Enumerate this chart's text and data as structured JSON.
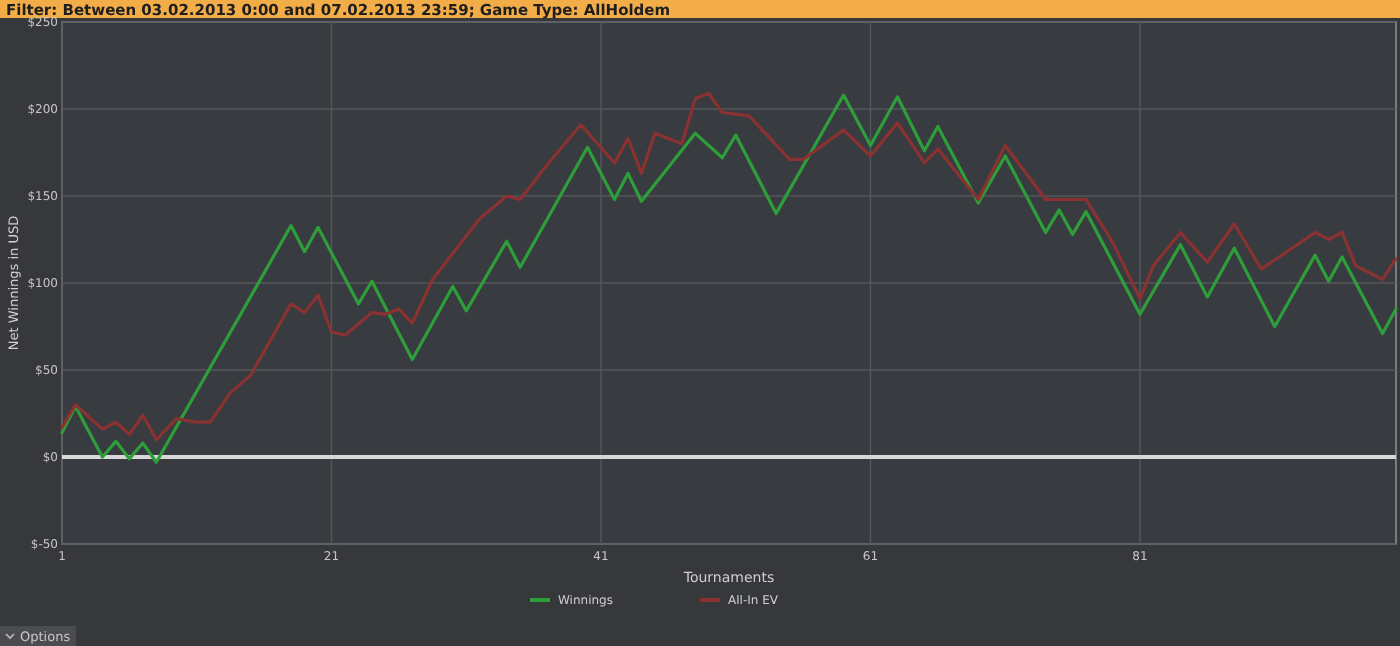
{
  "chart_data": {
    "type": "line",
    "title": "Filter: Between 03.02.2013 0:00 and 07.02.2013 23:59; Game Type: AllHoldem",
    "xlabel": "Tournaments",
    "ylabel": "Net Winnings in USD",
    "xlim": [
      1,
      100
    ],
    "xticks": [
      1,
      21,
      41,
      61,
      81
    ],
    "ylim": [
      -50,
      250
    ],
    "yticks": [
      {
        "value": -50,
        "label": "$-50"
      },
      {
        "value": 0,
        "label": "$0"
      },
      {
        "value": 50,
        "label": "$50"
      },
      {
        "value": 100,
        "label": "$100"
      },
      {
        "value": 150,
        "label": "$150"
      },
      {
        "value": 200,
        "label": "$200"
      },
      {
        "value": 250,
        "label": "$250"
      }
    ],
    "grid": true,
    "legend": "bottom",
    "line_style": "solid",
    "marker": "none",
    "ref_lines": [
      {
        "axis": "y",
        "value": 0,
        "color": "#d8d8d8"
      }
    ],
    "annotations": [
      "Options"
    ],
    "series": [
      {
        "name": "Winnings",
        "color": "#2e9e3a",
        "x": [
          1,
          2,
          4,
          5,
          6,
          7,
          8,
          18,
          19,
          20,
          23,
          24,
          27,
          30,
          31,
          34,
          35,
          40,
          42,
          43,
          44,
          48,
          50,
          51,
          54,
          59,
          61,
          63,
          65,
          66,
          69,
          71,
          74,
          75,
          76,
          77,
          81,
          84,
          86,
          88,
          91,
          94,
          95,
          96,
          99,
          100
        ],
        "values": [
          14,
          29,
          0,
          9,
          -1,
          8,
          -3,
          133,
          118,
          132,
          88,
          101,
          56,
          98,
          84,
          124,
          109,
          178,
          148,
          163,
          147,
          186,
          172,
          185,
          140,
          208,
          179,
          207,
          176,
          190,
          146,
          173,
          129,
          142,
          128,
          141,
          82,
          122,
          92,
          120,
          75,
          116,
          101,
          115,
          71,
          85
        ]
      },
      {
        "name": "All-In EV",
        "color": "#8a3232",
        "x": [
          1,
          2,
          4,
          5,
          6,
          7,
          8,
          9.5,
          11,
          12,
          13.5,
          15,
          18,
          19,
          20,
          21,
          22,
          24,
          25,
          26,
          27,
          28.5,
          30.5,
          32,
          34,
          35,
          37,
          39.5,
          42,
          43,
          44,
          45,
          47,
          48,
          49,
          50,
          52,
          55,
          56,
          59,
          61,
          63,
          65,
          66,
          69,
          71,
          74,
          77,
          79,
          81,
          82,
          84,
          86,
          88,
          90,
          94,
          95,
          96,
          97,
          99,
          100
        ],
        "values": [
          17,
          30,
          16,
          20,
          13,
          24,
          10,
          22,
          20,
          20,
          37,
          47,
          88,
          83,
          93,
          72,
          70,
          83,
          82,
          85,
          77,
          102,
          122,
          137,
          150,
          148,
          168,
          191,
          169,
          183,
          163,
          186,
          180,
          206,
          209,
          198,
          196,
          171,
          171,
          188,
          173,
          192,
          169,
          177,
          148,
          179,
          148,
          148,
          123,
          91,
          110,
          129,
          112,
          134,
          108,
          129,
          125,
          129,
          110,
          102,
          114
        ]
      }
    ]
  }
}
